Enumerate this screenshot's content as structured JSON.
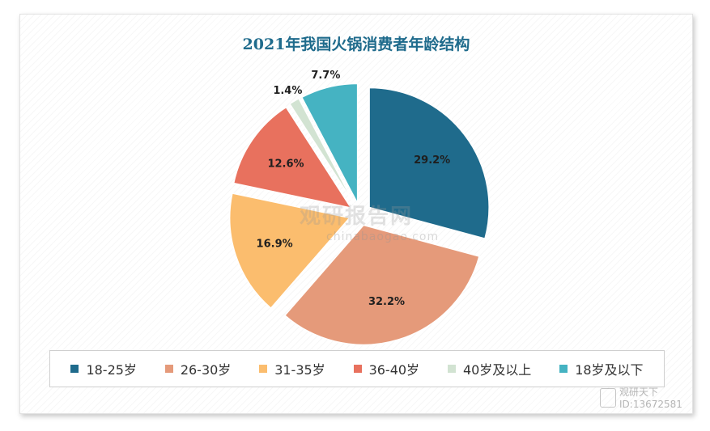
{
  "chart_data": {
    "type": "pie",
    "title": "2021年我国火锅消费者年龄结构",
    "categories": [
      "18-25岁",
      "26-30岁",
      "31-35岁",
      "36-40岁",
      "40岁及以上",
      "18岁及以下"
    ],
    "values": [
      29.2,
      32.2,
      16.9,
      12.6,
      1.4,
      7.7
    ],
    "value_labels": [
      "29.2%",
      "32.2%",
      "16.9%",
      "12.6%",
      "1.4%",
      "7.7%"
    ],
    "colors": [
      "#1f6b8c",
      "#e59a7a",
      "#fbbd6e",
      "#e8715e",
      "#d2e3d2",
      "#45b3c2"
    ],
    "legend_position": "bottom",
    "exploded": true
  },
  "title_color": "#1f6b8c",
  "watermark": {
    "brand": "观研报告网",
    "url": "chinabaogao.com"
  },
  "corner_mark": {
    "line1": "观研天下",
    "line2": "ID:13672581"
  }
}
